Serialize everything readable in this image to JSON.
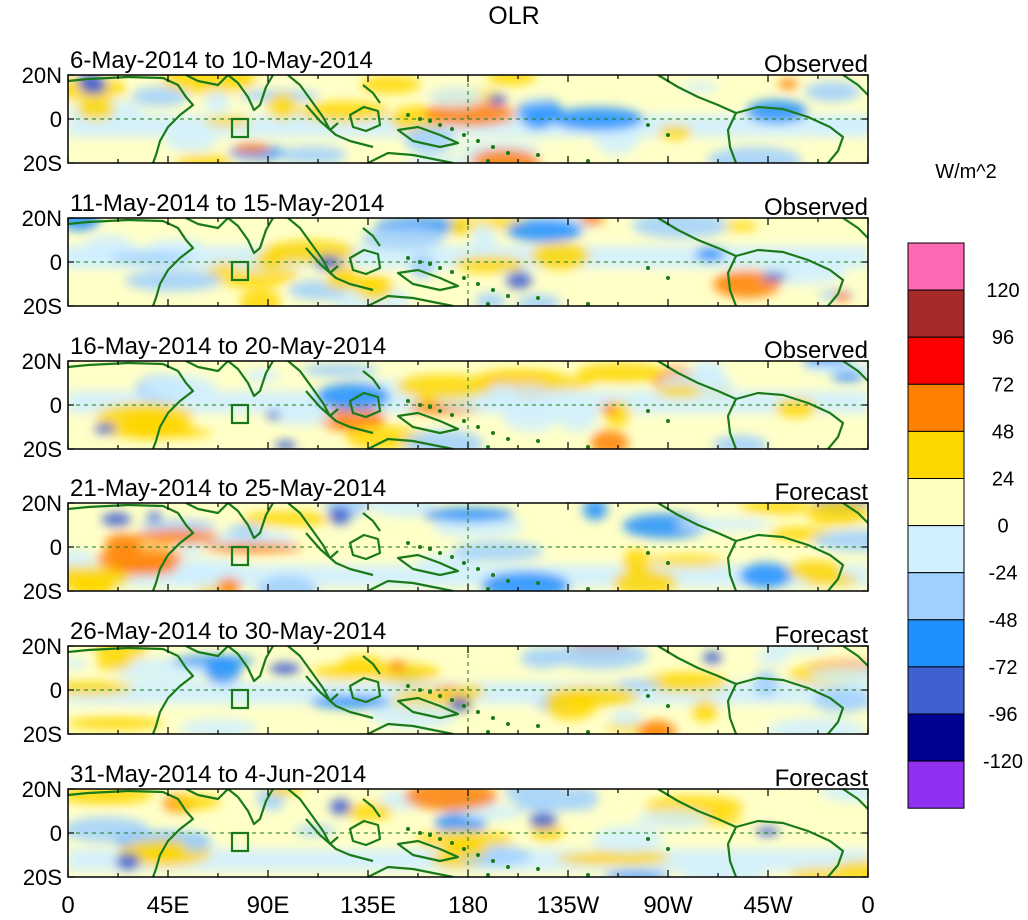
{
  "title": "OLR",
  "units": "W/m^2",
  "panels": [
    {
      "date_range": "6-May-2014 to 10-May-2014",
      "kind": "Observed"
    },
    {
      "date_range": "11-May-2014 to 15-May-2014",
      "kind": "Observed"
    },
    {
      "date_range": "16-May-2014 to 20-May-2014",
      "kind": "Observed"
    },
    {
      "date_range": "21-May-2014 to 25-May-2014",
      "kind": "Forecast"
    },
    {
      "date_range": "26-May-2014 to 30-May-2014",
      "kind": "Forecast"
    },
    {
      "date_range": "31-May-2014 to 4-Jun-2014",
      "kind": "Forecast"
    }
  ],
  "lat_ticks": [
    "20N",
    "0",
    "20S"
  ],
  "lon_ticks": [
    "0",
    "45E",
    "90E",
    "135E",
    "180",
    "135W",
    "90W",
    "45W",
    "0"
  ],
  "colorbar": {
    "labels": [
      "120",
      "96",
      "72",
      "48",
      "24",
      "0",
      "-24",
      "-48",
      "-72",
      "-96",
      "-120"
    ],
    "colors": [
      "#ff69b4",
      "#a52a2a",
      "#ff0000",
      "#ff7f00",
      "#ffd700",
      "#ffffc0",
      "#d0f0ff",
      "#a0d0ff",
      "#2090ff",
      "#4060d0",
      "#000090",
      "#9030f0"
    ]
  },
  "map_colors": {
    "background": "#ffffc8",
    "coast": "#1a7a1a",
    "neutral_neg": "#d0f0ff",
    "neg1": "#a0d0ff",
    "neg2": "#2090ff",
    "neg3": "#4060d0",
    "pos1": "#ffd700",
    "pos2": "#ff7f00",
    "pos3": "#ff0000"
  }
}
